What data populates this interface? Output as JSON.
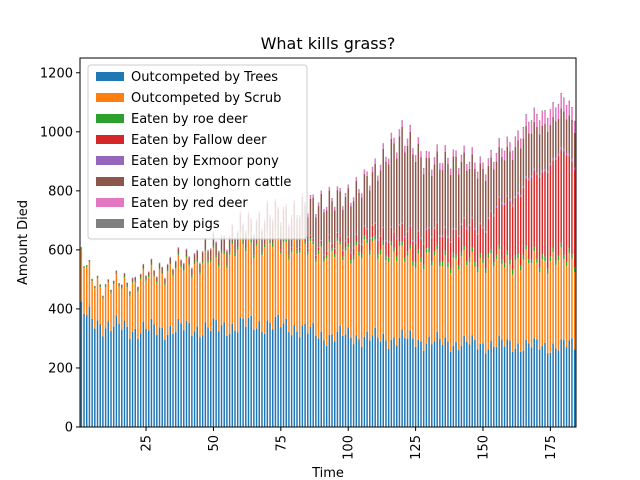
{
  "chart_data": {
    "type": "bar",
    "stacked": true,
    "title": "What kills grass?",
    "xlabel": "Time",
    "ylabel": "Amount Died",
    "x_start": 1,
    "x_end": 184,
    "xlim": [
      0.5,
      184.5
    ],
    "ylim": [
      0,
      1250
    ],
    "x_ticks": [
      25,
      50,
      75,
      100,
      125,
      150,
      175
    ],
    "y_ticks": [
      0,
      200,
      400,
      600,
      800,
      1000,
      1200
    ],
    "legend_position": "upper left",
    "grid": false,
    "series": [
      {
        "name": "Outcompeted by Trees",
        "color": "#1f77b4",
        "keypoints": [
          [
            1,
            390
          ],
          [
            5,
            360
          ],
          [
            10,
            345
          ],
          [
            20,
            330
          ],
          [
            30,
            330
          ],
          [
            40,
            335
          ],
          [
            50,
            335
          ],
          [
            60,
            345
          ],
          [
            70,
            350
          ],
          [
            80,
            340
          ],
          [
            90,
            310
          ],
          [
            100,
            310
          ],
          [
            110,
            300
          ],
          [
            120,
            300
          ],
          [
            130,
            290
          ],
          [
            140,
            285
          ],
          [
            150,
            280
          ],
          [
            160,
            280
          ],
          [
            170,
            275
          ],
          [
            180,
            275
          ],
          [
            184,
            280
          ]
        ]
      },
      {
        "name": "Outcompeted by Scrub",
        "color": "#ff7f0e",
        "keypoints": [
          [
            1,
            175
          ],
          [
            5,
            145
          ],
          [
            10,
            125
          ],
          [
            20,
            155
          ],
          [
            30,
            190
          ],
          [
            40,
            210
          ],
          [
            50,
            230
          ],
          [
            60,
            265
          ],
          [
            70,
            275
          ],
          [
            80,
            270
          ],
          [
            90,
            285
          ],
          [
            100,
            280
          ],
          [
            110,
            305
          ],
          [
            120,
            280
          ],
          [
            130,
            275
          ],
          [
            140,
            275
          ],
          [
            150,
            280
          ],
          [
            160,
            280
          ],
          [
            170,
            285
          ],
          [
            180,
            290
          ],
          [
            184,
            290
          ]
        ]
      },
      {
        "name": "Eaten by roe deer",
        "color": "#2ca02c",
        "keypoints": [
          [
            1,
            5
          ],
          [
            40,
            5
          ],
          [
            60,
            8
          ],
          [
            80,
            10
          ],
          [
            100,
            12
          ],
          [
            110,
            15
          ],
          [
            120,
            15
          ],
          [
            150,
            15
          ],
          [
            184,
            15
          ]
        ]
      },
      {
        "name": "Eaten by Fallow deer",
        "color": "#d62728",
        "keypoints": [
          [
            1,
            0
          ],
          [
            70,
            0
          ],
          [
            80,
            5
          ],
          [
            90,
            10
          ],
          [
            100,
            20
          ],
          [
            110,
            40
          ],
          [
            120,
            60
          ],
          [
            130,
            70
          ],
          [
            140,
            90
          ],
          [
            150,
            110
          ],
          [
            160,
            200
          ],
          [
            170,
            270
          ],
          [
            175,
            330
          ],
          [
            180,
            330
          ],
          [
            184,
            310
          ]
        ]
      },
      {
        "name": "Eaten by Exmoor pony",
        "color": "#9467bd",
        "keypoints": [
          [
            1,
            0
          ],
          [
            70,
            0
          ],
          [
            100,
            3
          ],
          [
            150,
            5
          ],
          [
            184,
            8
          ]
        ]
      },
      {
        "name": "Eaten by longhorn cattle",
        "color": "#8c564b",
        "keypoints": [
          [
            1,
            0
          ],
          [
            40,
            20
          ],
          [
            50,
            40
          ],
          [
            60,
            55
          ],
          [
            70,
            80
          ],
          [
            80,
            100
          ],
          [
            90,
            140
          ],
          [
            100,
            150
          ],
          [
            110,
            190
          ],
          [
            115,
            270
          ],
          [
            120,
            320
          ],
          [
            130,
            230
          ],
          [
            140,
            230
          ],
          [
            150,
            180
          ],
          [
            160,
            150
          ],
          [
            165,
            170
          ],
          [
            170,
            150
          ],
          [
            175,
            130
          ],
          [
            180,
            130
          ],
          [
            184,
            120
          ]
        ]
      },
      {
        "name": "Eaten by red deer",
        "color": "#e377c2",
        "keypoints": [
          [
            1,
            0
          ],
          [
            40,
            3
          ],
          [
            80,
            10
          ],
          [
            100,
            10
          ],
          [
            120,
            20
          ],
          [
            150,
            20
          ],
          [
            165,
            35
          ],
          [
            175,
            50
          ],
          [
            184,
            40
          ]
        ]
      },
      {
        "name": "Eaten by pigs",
        "color": "#7f7f7f",
        "keypoints": [
          [
            1,
            0
          ],
          [
            60,
            1
          ],
          [
            120,
            2
          ],
          [
            184,
            3
          ]
        ]
      }
    ]
  }
}
